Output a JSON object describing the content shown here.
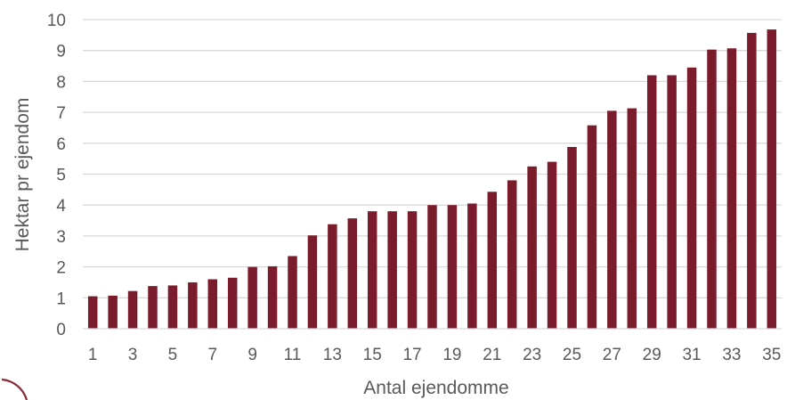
{
  "chart_data": {
    "type": "bar",
    "title": "",
    "xlabel": "Antal ejendomme",
    "ylabel": "Hektar pr ejendom",
    "ylim": [
      0,
      10
    ],
    "yticks": [
      0,
      1,
      2,
      3,
      4,
      5,
      6,
      7,
      8,
      9,
      10
    ],
    "xtick_labels": [
      "1",
      "3",
      "5",
      "7",
      "9",
      "11",
      "13",
      "15",
      "17",
      "19",
      "21",
      "23",
      "25",
      "27",
      "29",
      "31",
      "33",
      "35"
    ],
    "categories": [
      1,
      2,
      3,
      4,
      5,
      6,
      7,
      8,
      9,
      10,
      11,
      12,
      13,
      14,
      15,
      16,
      17,
      18,
      19,
      20,
      21,
      22,
      23,
      24,
      25,
      26,
      27,
      28,
      29,
      30,
      31,
      32,
      33,
      34,
      35
    ],
    "values": [
      1.05,
      1.07,
      1.22,
      1.38,
      1.4,
      1.5,
      1.6,
      1.65,
      2.0,
      2.02,
      2.35,
      3.02,
      3.38,
      3.57,
      3.8,
      3.8,
      3.8,
      4.0,
      4.0,
      4.05,
      4.43,
      4.8,
      5.25,
      5.4,
      5.88,
      6.58,
      7.05,
      7.13,
      8.2,
      8.2,
      8.45,
      9.03,
      9.07,
      9.57,
      9.68
    ],
    "grid": true,
    "legend": "none",
    "bar_color": "#7b1c2c"
  },
  "decor": {
    "logo_arc_color": "#8b2a37"
  }
}
